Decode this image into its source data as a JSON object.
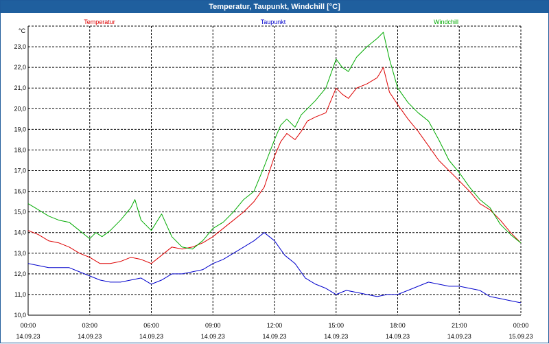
{
  "window": {
    "title": "Temperatur, Taupunkt, Windchill [°C]"
  },
  "chart_data": {
    "type": "line",
    "title": "Temperatur, Taupunkt, Windchill [°C]",
    "ylabel": "°C",
    "ylim": [
      10.0,
      24.0
    ],
    "yticks": [
      "10,0",
      "11,0",
      "12,0",
      "13,0",
      "14,0",
      "15,0",
      "16,0",
      "17,0",
      "18,0",
      "19,0",
      "20,0",
      "21,0",
      "22,0",
      "23,0"
    ],
    "xlim": [
      0,
      24
    ],
    "xticks": [
      {
        "time": "00:00",
        "date": "14.09.23"
      },
      {
        "time": "03:00",
        "date": "14.09.23"
      },
      {
        "time": "06:00",
        "date": "14.09.23"
      },
      {
        "time": "09:00",
        "date": "14.09.23"
      },
      {
        "time": "12:00",
        "date": "14.09.23"
      },
      {
        "time": "15:00",
        "date": "14.09.23"
      },
      {
        "time": "18:00",
        "date": "14.09.23"
      },
      {
        "time": "21:00",
        "date": "14.09.23"
      },
      {
        "time": "00:00",
        "date": "15.09.23"
      }
    ],
    "grid": true,
    "legend": "top",
    "series": [
      {
        "name": "Temperatur",
        "color": "#dd0000",
        "points": [
          [
            0,
            14.1
          ],
          [
            0.5,
            13.9
          ],
          [
            1,
            13.6
          ],
          [
            1.5,
            13.5
          ],
          [
            2,
            13.3
          ],
          [
            2.5,
            13.0
          ],
          [
            3,
            12.8
          ],
          [
            3.5,
            12.5
          ],
          [
            4,
            12.5
          ],
          [
            4.5,
            12.6
          ],
          [
            5,
            12.8
          ],
          [
            5.5,
            12.7
          ],
          [
            6,
            12.5
          ],
          [
            6.5,
            12.9
          ],
          [
            7,
            13.3
          ],
          [
            7.5,
            13.2
          ],
          [
            8,
            13.3
          ],
          [
            8.5,
            13.5
          ],
          [
            9,
            13.8
          ],
          [
            9.5,
            14.2
          ],
          [
            10,
            14.6
          ],
          [
            10.5,
            15.0
          ],
          [
            11,
            15.5
          ],
          [
            11.5,
            16.2
          ],
          [
            12,
            17.7
          ],
          [
            12.3,
            18.4
          ],
          [
            12.6,
            18.8
          ],
          [
            13,
            18.5
          ],
          [
            13.3,
            18.9
          ],
          [
            13.6,
            19.4
          ],
          [
            14,
            19.6
          ],
          [
            14.5,
            19.8
          ],
          [
            15,
            21.0
          ],
          [
            15.3,
            20.7
          ],
          [
            15.6,
            20.5
          ],
          [
            16,
            21.0
          ],
          [
            16.5,
            21.2
          ],
          [
            17,
            21.5
          ],
          [
            17.3,
            22.0
          ],
          [
            17.6,
            20.8
          ],
          [
            18,
            20.2
          ],
          [
            18.5,
            19.5
          ],
          [
            19,
            18.9
          ],
          [
            19.5,
            18.2
          ],
          [
            20,
            17.5
          ],
          [
            20.5,
            17.0
          ],
          [
            21,
            16.5
          ],
          [
            21.5,
            16.0
          ],
          [
            22,
            15.4
          ],
          [
            22.5,
            15.1
          ],
          [
            23,
            14.6
          ],
          [
            23.5,
            14.0
          ],
          [
            24,
            13.5
          ]
        ]
      },
      {
        "name": "Taupunkt",
        "color": "#0000cc",
        "points": [
          [
            0,
            12.5
          ],
          [
            0.5,
            12.4
          ],
          [
            1,
            12.3
          ],
          [
            1.5,
            12.3
          ],
          [
            2,
            12.3
          ],
          [
            2.5,
            12.1
          ],
          [
            3,
            11.9
          ],
          [
            3.5,
            11.7
          ],
          [
            4,
            11.6
          ],
          [
            4.5,
            11.6
          ],
          [
            5,
            11.7
          ],
          [
            5.5,
            11.8
          ],
          [
            6,
            11.5
          ],
          [
            6.5,
            11.7
          ],
          [
            7,
            12.0
          ],
          [
            7.5,
            12.0
          ],
          [
            8,
            12.1
          ],
          [
            8.5,
            12.2
          ],
          [
            9,
            12.5
          ],
          [
            9.5,
            12.7
          ],
          [
            10,
            13.0
          ],
          [
            10.5,
            13.3
          ],
          [
            11,
            13.6
          ],
          [
            11.5,
            14.0
          ],
          [
            12,
            13.6
          ],
          [
            12.5,
            12.9
          ],
          [
            13,
            12.5
          ],
          [
            13.5,
            11.8
          ],
          [
            14,
            11.5
          ],
          [
            14.5,
            11.3
          ],
          [
            15,
            11.0
          ],
          [
            15.5,
            11.2
          ],
          [
            16,
            11.1
          ],
          [
            16.5,
            11.0
          ],
          [
            17,
            10.9
          ],
          [
            17.5,
            11.0
          ],
          [
            18,
            11.0
          ],
          [
            18.5,
            11.2
          ],
          [
            19,
            11.4
          ],
          [
            19.5,
            11.6
          ],
          [
            20,
            11.5
          ],
          [
            20.5,
            11.4
          ],
          [
            21,
            11.4
          ],
          [
            21.5,
            11.3
          ],
          [
            22,
            11.2
          ],
          [
            22.5,
            10.9
          ],
          [
            23,
            10.8
          ],
          [
            23.5,
            10.7
          ],
          [
            24,
            10.6
          ]
        ]
      },
      {
        "name": "Windchill",
        "color": "#00aa00",
        "points": [
          [
            0,
            15.4
          ],
          [
            0.5,
            15.1
          ],
          [
            1,
            14.8
          ],
          [
            1.5,
            14.6
          ],
          [
            2,
            14.5
          ],
          [
            2.5,
            14.1
          ],
          [
            3,
            13.7
          ],
          [
            3.3,
            14.0
          ],
          [
            3.6,
            13.8
          ],
          [
            4,
            14.1
          ],
          [
            4.5,
            14.6
          ],
          [
            5,
            15.2
          ],
          [
            5.2,
            15.6
          ],
          [
            5.5,
            14.6
          ],
          [
            6,
            14.1
          ],
          [
            6.5,
            14.9
          ],
          [
            7,
            13.8
          ],
          [
            7.5,
            13.3
          ],
          [
            8,
            13.2
          ],
          [
            8.5,
            13.6
          ],
          [
            9,
            14.2
          ],
          [
            9.5,
            14.5
          ],
          [
            10,
            15.0
          ],
          [
            10.5,
            15.6
          ],
          [
            11,
            16.0
          ],
          [
            11.5,
            17.2
          ],
          [
            12,
            18.5
          ],
          [
            12.3,
            19.2
          ],
          [
            12.6,
            19.5
          ],
          [
            13,
            19.1
          ],
          [
            13.3,
            19.7
          ],
          [
            13.6,
            20.0
          ],
          [
            14,
            20.4
          ],
          [
            14.5,
            21.0
          ],
          [
            15,
            22.4
          ],
          [
            15.3,
            22.0
          ],
          [
            15.6,
            21.8
          ],
          [
            16,
            22.5
          ],
          [
            16.5,
            23.0
          ],
          [
            17,
            23.4
          ],
          [
            17.3,
            23.7
          ],
          [
            17.6,
            22.4
          ],
          [
            18,
            21.0
          ],
          [
            18.5,
            20.3
          ],
          [
            19,
            19.8
          ],
          [
            19.5,
            19.4
          ],
          [
            20,
            18.5
          ],
          [
            20.5,
            17.5
          ],
          [
            21,
            16.9
          ],
          [
            21.5,
            16.2
          ],
          [
            22,
            15.6
          ],
          [
            22.5,
            15.2
          ],
          [
            23,
            14.4
          ],
          [
            23.5,
            13.9
          ],
          [
            24,
            13.5
          ]
        ]
      }
    ]
  }
}
